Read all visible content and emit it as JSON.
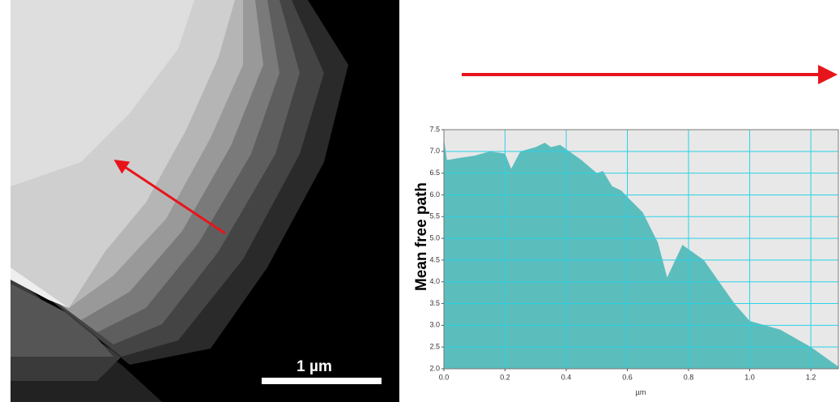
{
  "image": {
    "scale_bar_label": "1 µm"
  },
  "chart_data": {
    "type": "area",
    "y_label": "Mean free path",
    "x_label": "µm",
    "x": [
      0,
      0.01,
      0.05,
      0.1,
      0.15,
      0.2,
      0.22,
      0.25,
      0.3,
      0.33,
      0.35,
      0.38,
      0.4,
      0.45,
      0.5,
      0.52,
      0.55,
      0.58,
      0.6,
      0.65,
      0.7,
      0.73,
      0.75,
      0.78,
      0.8,
      0.85,
      0.9,
      0.95,
      1.0,
      1.05,
      1.1,
      1.15,
      1.2,
      1.25,
      1.29
    ],
    "values": [
      7.3,
      6.8,
      6.85,
      6.9,
      7.0,
      6.95,
      6.6,
      7.0,
      7.1,
      7.2,
      7.1,
      7.15,
      7.05,
      6.8,
      6.5,
      6.55,
      6.2,
      6.1,
      5.95,
      5.6,
      4.9,
      4.1,
      4.4,
      4.85,
      4.75,
      4.5,
      4.0,
      3.5,
      3.1,
      3.0,
      2.9,
      2.7,
      2.5,
      2.25,
      2.05
    ],
    "color": "#5cbdbd",
    "xlim": [
      0,
      1.29
    ],
    "ylim": [
      2.0,
      7.5
    ],
    "xticks": [
      {
        "value": 0,
        "label": "0.0"
      },
      0.2,
      0.4,
      0.6,
      0.8,
      {
        "value": 1,
        "label": "1.0"
      },
      1.2
    ],
    "yticks": [
      {
        "value": 2,
        "label": "2.0"
      },
      2.5,
      {
        "value": 3,
        "label": "3.0"
      },
      3.5,
      {
        "value": 4,
        "label": "4.0"
      },
      4.5,
      {
        "value": 5,
        "label": "5.0"
      },
      5.5,
      {
        "value": 6,
        "label": "6.0"
      },
      6.5,
      {
        "value": 7,
        "label": "7.0"
      },
      7.5
    ],
    "grid": true
  }
}
